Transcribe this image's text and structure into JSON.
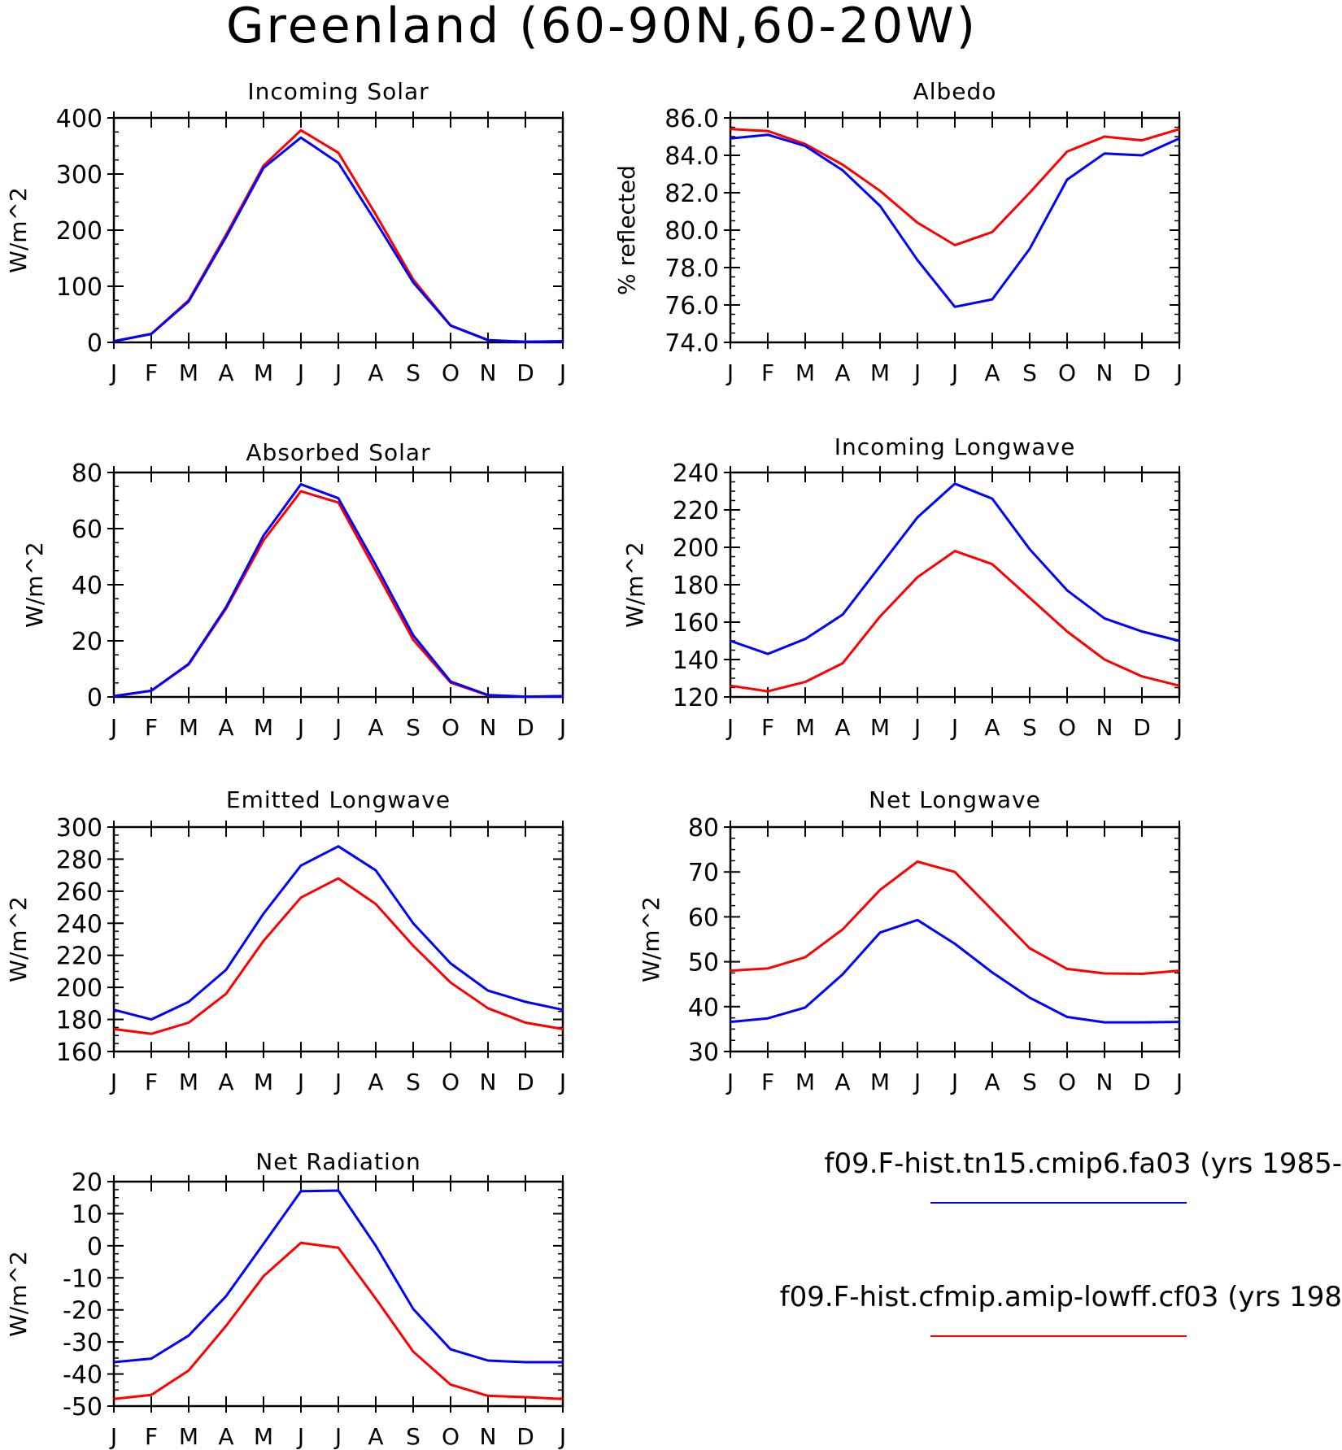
{
  "page_title": "Greenland (60-90N,60-20W)",
  "colors": {
    "run1": "#0000ff",
    "run2": "#ff0000",
    "axis": "#000000"
  },
  "legend": {
    "entries": [
      {
        "label": "f09.F-hist.tn15.cmip6.fa03 (yrs 1985-",
        "color": "#0000ff"
      },
      {
        "label": "f09.F-hist.cfmip.amip-lowff.cf03 (yrs 198",
        "color": "#ff0000"
      }
    ]
  },
  "chart_data": [
    {
      "type": "line",
      "title": "Incoming Solar",
      "ylabel": "W/m^2",
      "ylim": [
        0,
        400
      ],
      "yticks": [
        0,
        100,
        200,
        300,
        400
      ],
      "ytick_labels": [
        "0",
        "100",
        "200",
        "300",
        "400"
      ],
      "categories": [
        "J",
        "F",
        "M",
        "A",
        "M",
        "J",
        "J",
        "A",
        "S",
        "O",
        "N",
        "D",
        "J"
      ],
      "series": [
        {
          "color": "#ff0000",
          "values": [
            2,
            15,
            75,
            192,
            315,
            378,
            338,
            228,
            112,
            30,
            4,
            1,
            2
          ]
        },
        {
          "color": "#0000ff",
          "values": [
            2,
            15,
            73,
            188,
            311,
            365,
            320,
            215,
            107,
            30,
            4,
            1,
            2
          ]
        }
      ]
    },
    {
      "type": "line",
      "title": "Albedo",
      "ylabel": "% reflected",
      "ylim": [
        74,
        86
      ],
      "yticks": [
        74,
        76,
        78,
        80,
        82,
        84,
        86
      ],
      "ytick_labels": [
        "74.0",
        "76.0",
        "78.0",
        "80.0",
        "82.0",
        "84.0",
        "86.0"
      ],
      "categories": [
        "J",
        "F",
        "M",
        "A",
        "M",
        "J",
        "J",
        "A",
        "S",
        "O",
        "N",
        "D",
        "J"
      ],
      "series": [
        {
          "color": "#ff0000",
          "values": [
            85.4,
            85.3,
            84.6,
            83.5,
            82.1,
            80.4,
            79.2,
            79.9,
            82.0,
            84.2,
            85.0,
            84.8,
            85.4
          ]
        },
        {
          "color": "#0000ff",
          "values": [
            84.9,
            85.1,
            84.5,
            83.2,
            81.3,
            78.4,
            75.9,
            76.3,
            79.0,
            82.7,
            84.1,
            84.0,
            84.9
          ]
        }
      ]
    },
    {
      "type": "line",
      "title": "Absorbed Solar",
      "ylabel": "W/m^2",
      "ylim": [
        0,
        80
      ],
      "yticks": [
        0,
        20,
        40,
        60,
        80
      ],
      "ytick_labels": [
        "0",
        "20",
        "40",
        "60",
        "80"
      ],
      "categories": [
        "J",
        "F",
        "M",
        "A",
        "M",
        "J",
        "J",
        "A",
        "S",
        "O",
        "N",
        "D",
        "J"
      ],
      "series": [
        {
          "color": "#ff0000",
          "values": [
            0.3,
            2.2,
            11.6,
            31.5,
            55.8,
            73.3,
            69.3,
            45.0,
            20.4,
            5.1,
            0.6,
            0.1,
            0.3
          ]
        },
        {
          "color": "#0000ff",
          "values": [
            0.3,
            2.2,
            11.8,
            32.0,
            57.5,
            75.8,
            70.8,
            47.0,
            22.0,
            5.5,
            0.7,
            0.1,
            0.3
          ]
        }
      ]
    },
    {
      "type": "line",
      "title": "Incoming Longwave",
      "ylabel": "W/m^2",
      "ylim": [
        120,
        240
      ],
      "yticks": [
        120,
        140,
        160,
        180,
        200,
        220,
        240
      ],
      "ytick_labels": [
        "120",
        "140",
        "160",
        "180",
        "200",
        "220",
        "240"
      ],
      "categories": [
        "J",
        "F",
        "M",
        "A",
        "M",
        "J",
        "J",
        "A",
        "S",
        "O",
        "N",
        "D",
        "J"
      ],
      "series": [
        {
          "color": "#0000ff",
          "values": [
            150,
            143,
            151,
            164,
            190,
            216,
            234,
            226,
            199,
            177,
            162,
            155,
            150
          ]
        },
        {
          "color": "#ff0000",
          "values": [
            126,
            123,
            128,
            138,
            163,
            184,
            198,
            191,
            173,
            155,
            140,
            131,
            126
          ]
        }
      ]
    },
    {
      "type": "line",
      "title": "Emitted Longwave",
      "ylabel": "W/m^2",
      "ylim": [
        160,
        300
      ],
      "yticks": [
        160,
        180,
        200,
        220,
        240,
        260,
        280,
        300
      ],
      "ytick_labels": [
        "160",
        "180",
        "200",
        "220",
        "240",
        "260",
        "280",
        "300"
      ],
      "categories": [
        "J",
        "F",
        "M",
        "A",
        "M",
        "J",
        "J",
        "A",
        "S",
        "O",
        "N",
        "D",
        "J"
      ],
      "series": [
        {
          "color": "#0000ff",
          "values": [
            186,
            180,
            191,
            211,
            246,
            276,
            288,
            273,
            240,
            215,
            198,
            191,
            186
          ]
        },
        {
          "color": "#ff0000",
          "values": [
            174,
            171,
            178,
            196,
            229,
            256,
            268,
            252,
            226,
            203,
            187,
            178,
            174
          ]
        }
      ]
    },
    {
      "type": "line",
      "title": "Net Longwave",
      "ylabel": "W/m^2",
      "ylim": [
        30,
        80
      ],
      "yticks": [
        30,
        40,
        50,
        60,
        70,
        80
      ],
      "ytick_labels": [
        "30",
        "40",
        "50",
        "60",
        "70",
        "80"
      ],
      "categories": [
        "J",
        "F",
        "M",
        "A",
        "M",
        "J",
        "J",
        "A",
        "S",
        "O",
        "N",
        "D",
        "J"
      ],
      "series": [
        {
          "color": "#ff0000",
          "values": [
            48.0,
            48.5,
            51.0,
            57.2,
            66.0,
            72.3,
            70.0,
            61.5,
            53.0,
            48.4,
            47.4,
            47.3,
            48.0
          ]
        },
        {
          "color": "#0000ff",
          "values": [
            36.6,
            37.4,
            39.8,
            47.2,
            56.5,
            59.3,
            54.0,
            47.6,
            42.0,
            37.7,
            36.5,
            36.5,
            36.6
          ]
        }
      ]
    },
    {
      "type": "line",
      "title": "Net Radiation",
      "ylabel": "W/m^2",
      "ylim": [
        -50,
        20
      ],
      "yticks": [
        -50,
        -40,
        -30,
        -20,
        -10,
        0,
        10,
        20
      ],
      "ytick_labels": [
        "-50",
        "-40",
        "-30",
        "-20",
        "-10",
        "0",
        "10",
        "20"
      ],
      "categories": [
        "J",
        "F",
        "M",
        "A",
        "M",
        "J",
        "J",
        "A",
        "S",
        "O",
        "N",
        "D",
        "J"
      ],
      "series": [
        {
          "color": "#0000ff",
          "values": [
            -36.3,
            -35.2,
            -28.0,
            -15.7,
            0.6,
            17.0,
            17.2,
            0.0,
            -19.7,
            -32.3,
            -35.8,
            -36.3,
            -36.3
          ]
        },
        {
          "color": "#ff0000",
          "values": [
            -47.8,
            -46.5,
            -38.9,
            -25.0,
            -9.5,
            0.9,
            -0.6,
            -16.5,
            -33.0,
            -43.3,
            -46.8,
            -47.2,
            -47.8
          ]
        }
      ]
    }
  ]
}
